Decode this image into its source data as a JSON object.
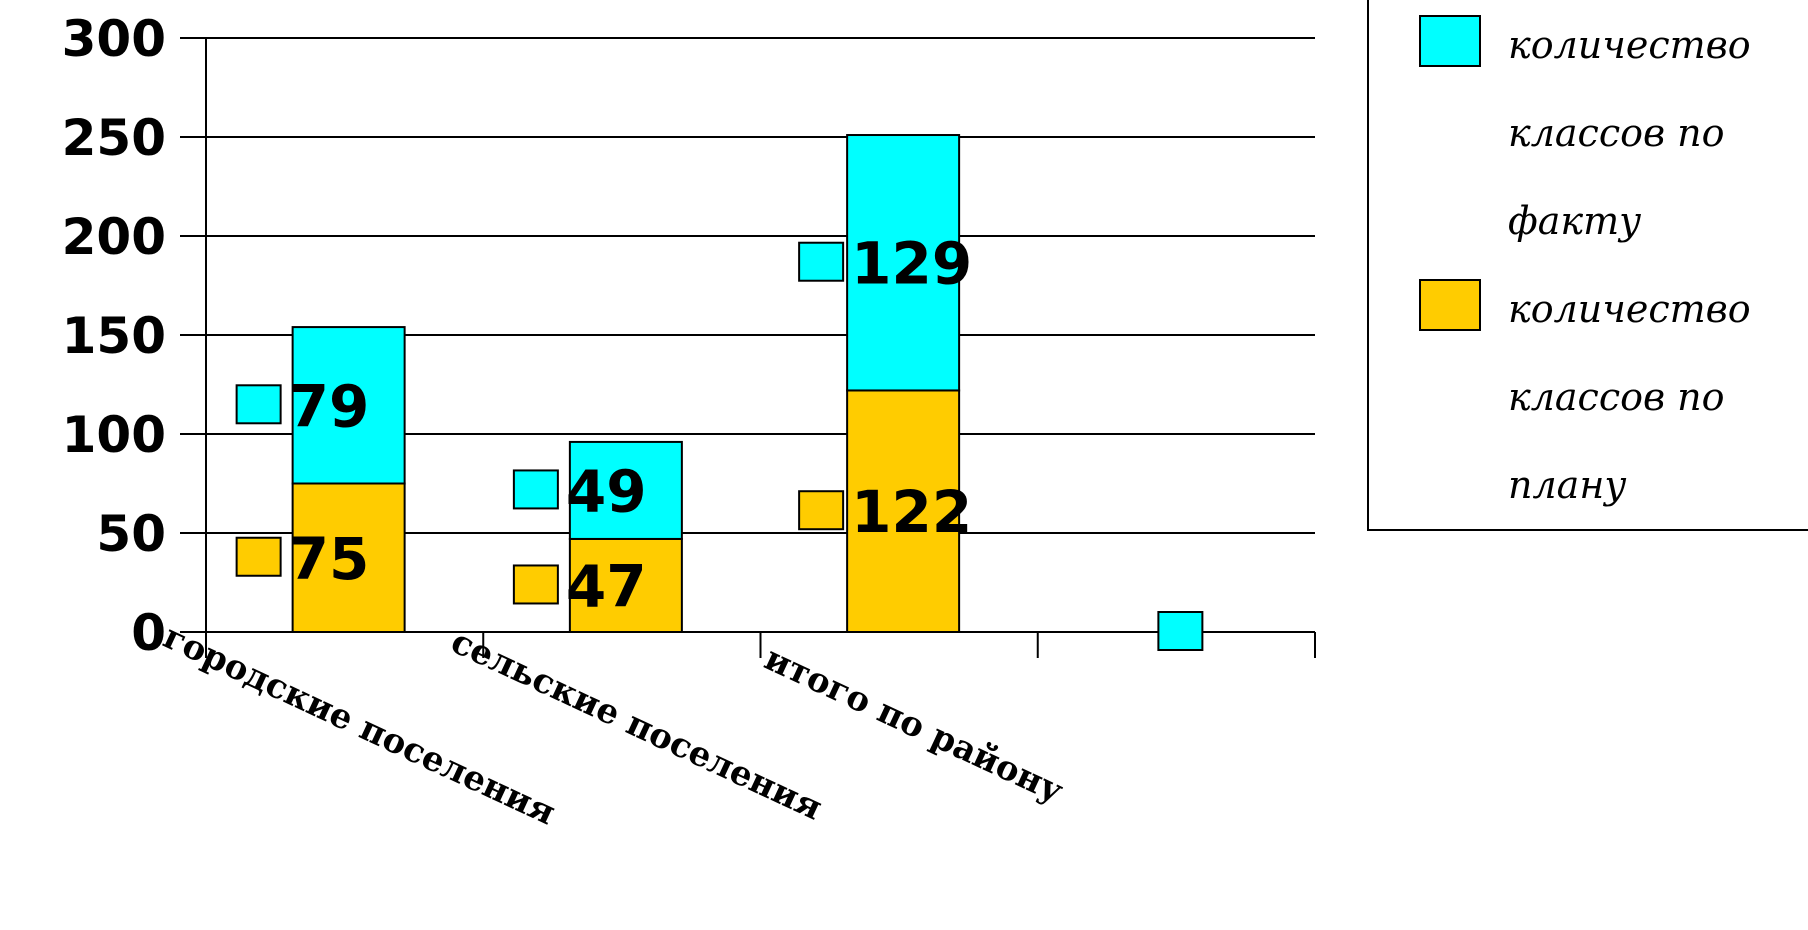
{
  "chart_data": {
    "type": "bar",
    "stacked": true,
    "categories": [
      "городские поселения",
      "сельские поселения",
      "итого по району"
    ],
    "series": [
      {
        "name": "количество классов по плану",
        "values": [
          75,
          47,
          122
        ],
        "color": "#FFCC00"
      },
      {
        "name": "количество классов по факту",
        "values": [
          79,
          49,
          129
        ],
        "color": "#00FFFF"
      }
    ],
    "data_labels": [
      {
        "series": 1,
        "category": 0,
        "text": "79"
      },
      {
        "series": 0,
        "category": 0,
        "text": "75"
      },
      {
        "series": 1,
        "category": 1,
        "text": "49"
      },
      {
        "series": 0,
        "category": 1,
        "text": "47"
      },
      {
        "series": 1,
        "category": 2,
        "text": "129"
      },
      {
        "series": 0,
        "category": 2,
        "text": "122"
      },
      {
        "series": 1,
        "category": 3,
        "text": "0"
      }
    ],
    "y_ticks": [
      "0",
      "50",
      "100",
      "150",
      "200",
      "250",
      "300"
    ],
    "ylim": [
      0,
      300
    ],
    "grid": true,
    "legend": {
      "position": "top-right",
      "entries": [
        {
          "series": 1,
          "lines": [
            "количество",
            "классов по",
            "факту"
          ]
        },
        {
          "series": 0,
          "lines": [
            "количество",
            "классов по",
            "плану"
          ]
        }
      ]
    }
  }
}
